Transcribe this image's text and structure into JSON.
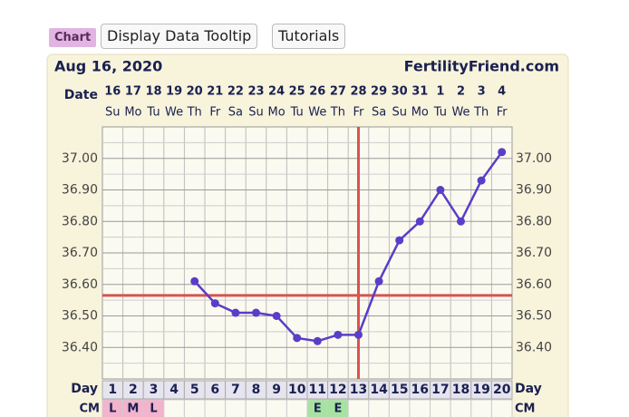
{
  "toolbar": {
    "tag": "Chart",
    "buttons": [
      "Display Data Tooltip",
      "Tutorials"
    ]
  },
  "chart_data": {
    "type": "line",
    "title": "Aug 16, 2020",
    "brand": "FertilityFriend.com",
    "date_label": "Date",
    "dates": [
      16,
      17,
      18,
      19,
      20,
      21,
      22,
      23,
      24,
      25,
      26,
      27,
      28,
      29,
      30,
      31,
      1,
      2,
      3,
      4
    ],
    "weekdays": [
      "Su",
      "Mo",
      "Tu",
      "We",
      "Th",
      "Fr",
      "Sa",
      "Su",
      "Mo",
      "Tu",
      "We",
      "Th",
      "Fr",
      "Sa",
      "Su",
      "Mo",
      "Tu",
      "We",
      "Th",
      "Fr"
    ],
    "x_label": "Day",
    "x": [
      1,
      2,
      3,
      4,
      5,
      6,
      7,
      8,
      9,
      10,
      11,
      12,
      13,
      14,
      15,
      16,
      17,
      18,
      19,
      20
    ],
    "series": [
      {
        "color": "#5a3dc8",
        "values": [
          null,
          null,
          null,
          null,
          36.61,
          36.54,
          36.51,
          36.51,
          36.5,
          36.43,
          36.42,
          36.44,
          36.44,
          36.61,
          36.74,
          36.8,
          36.9,
          36.8,
          36.93,
          37.02
        ]
      }
    ],
    "ylim": [
      36.3,
      37.1
    ],
    "yticks": [
      {
        "value": 36.4,
        "label": "36.40"
      },
      {
        "value": 36.5,
        "label": "36.50"
      },
      {
        "value": 36.6,
        "label": "36.60"
      },
      {
        "value": 36.7,
        "label": "36.70"
      },
      {
        "value": 36.8,
        "label": "36.80"
      },
      {
        "value": 36.9,
        "label": "36.90"
      },
      {
        "value": 37.0,
        "label": "37.00"
      }
    ],
    "coverline": 36.565,
    "ovulation_day": 13,
    "marker_color": "#d9534f",
    "cm_label": "CM",
    "cm": [
      "L",
      "M",
      "L",
      null,
      null,
      null,
      null,
      null,
      null,
      null,
      "E",
      "E",
      null,
      null,
      null,
      null,
      null,
      null,
      null,
      null
    ],
    "cm_colors": {
      "L": "#f3b3cc",
      "M": "#f3b3cc",
      "E": "#a6e3a1"
    }
  }
}
